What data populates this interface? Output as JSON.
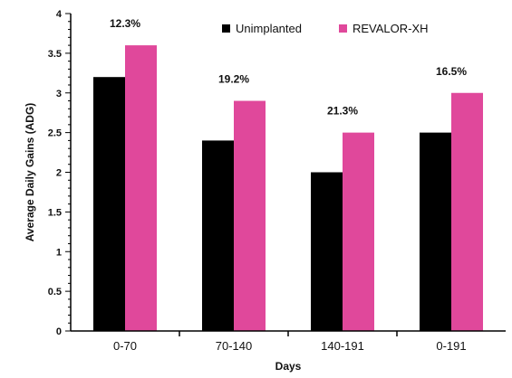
{
  "chart_data": {
    "type": "bar",
    "title": "",
    "xlabel": "Days",
    "ylabel": "Average Daily Gains (ADG)",
    "categories": [
      "0-70",
      "70-140",
      "140-191",
      "0-191"
    ],
    "series": [
      {
        "name": "Unimplanted",
        "color": "#000000",
        "values": [
          3.2,
          2.4,
          2.0,
          2.5
        ]
      },
      {
        "name": "REVALOR-XH",
        "color": "#e0489b",
        "values": [
          3.6,
          2.9,
          2.5,
          3.0
        ]
      }
    ],
    "annotations": [
      "12.3%",
      "19.2%",
      "21.3%",
      "16.5%"
    ],
    "ylim": [
      0,
      4
    ],
    "yticks": [
      "0",
      "0.5",
      "1",
      "1.5",
      "2",
      "2.5",
      "3",
      "3.5",
      "4"
    ],
    "grid": false,
    "legend_position": "top-right"
  }
}
